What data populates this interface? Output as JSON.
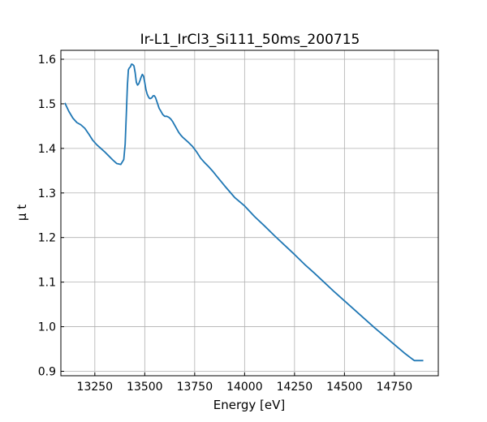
{
  "chart_data": {
    "type": "line",
    "title": "Ir-L1_IrCl3_Si111_50ms_200715",
    "xlabel": "Energy [eV]",
    "ylabel": "μ t",
    "xlim": [
      13080,
      14970
    ],
    "ylim": [
      0.89,
      1.62
    ],
    "xticks": [
      13250,
      13500,
      13750,
      14000,
      14250,
      14500,
      14750
    ],
    "yticks": [
      0.9,
      1.0,
      1.1,
      1.2,
      1.3,
      1.4,
      1.5,
      1.6
    ],
    "xtick_labels": [
      "13250",
      "13500",
      "13750",
      "14000",
      "14250",
      "14500",
      "14750"
    ],
    "ytick_labels": [
      "0.9",
      "1.0",
      "1.1",
      "1.2",
      "1.3",
      "1.4",
      "1.5",
      "1.6"
    ],
    "grid": true,
    "series": [
      {
        "color": "#1f77b4",
        "x": [
          13100,
          13120,
          13140,
          13160,
          13180,
          13200,
          13220,
          13240,
          13260,
          13280,
          13300,
          13320,
          13340,
          13360,
          13380,
          13395,
          13402,
          13408,
          13413,
          13418,
          13422,
          13428,
          13434,
          13440,
          13446,
          13452,
          13458,
          13464,
          13470,
          13476,
          13482,
          13488,
          13494,
          13500,
          13506,
          13512,
          13518,
          13524,
          13530,
          13536,
          13542,
          13548,
          13554,
          13560,
          13566,
          13572,
          13580,
          13590,
          13600,
          13610,
          13620,
          13630,
          13640,
          13650,
          13660,
          13670,
          13680,
          13690,
          13700,
          13720,
          13740,
          13760,
          13780,
          13800,
          13820,
          13840,
          13860,
          13880,
          13900,
          13950,
          14000,
          14050,
          14100,
          14150,
          14200,
          14250,
          14300,
          14350,
          14400,
          14450,
          14500,
          14550,
          14600,
          14650,
          14700,
          14750,
          14800,
          14850,
          14895
        ],
        "y": [
          1.502,
          1.483,
          1.468,
          1.458,
          1.453,
          1.445,
          1.432,
          1.418,
          1.408,
          1.4,
          1.392,
          1.383,
          1.374,
          1.366,
          1.364,
          1.375,
          1.41,
          1.48,
          1.54,
          1.576,
          1.58,
          1.583,
          1.589,
          1.588,
          1.585,
          1.57,
          1.548,
          1.542,
          1.545,
          1.552,
          1.56,
          1.566,
          1.562,
          1.548,
          1.532,
          1.522,
          1.516,
          1.512,
          1.512,
          1.514,
          1.518,
          1.518,
          1.514,
          1.506,
          1.498,
          1.49,
          1.484,
          1.476,
          1.472,
          1.472,
          1.47,
          1.466,
          1.46,
          1.452,
          1.444,
          1.436,
          1.43,
          1.425,
          1.421,
          1.413,
          1.404,
          1.392,
          1.378,
          1.368,
          1.359,
          1.349,
          1.338,
          1.327,
          1.316,
          1.29,
          1.271,
          1.247,
          1.226,
          1.204,
          1.183,
          1.162,
          1.14,
          1.12,
          1.099,
          1.078,
          1.058,
          1.038,
          1.018,
          0.998,
          0.979,
          0.96,
          0.941,
          0.924,
          0.924
        ]
      }
    ]
  }
}
